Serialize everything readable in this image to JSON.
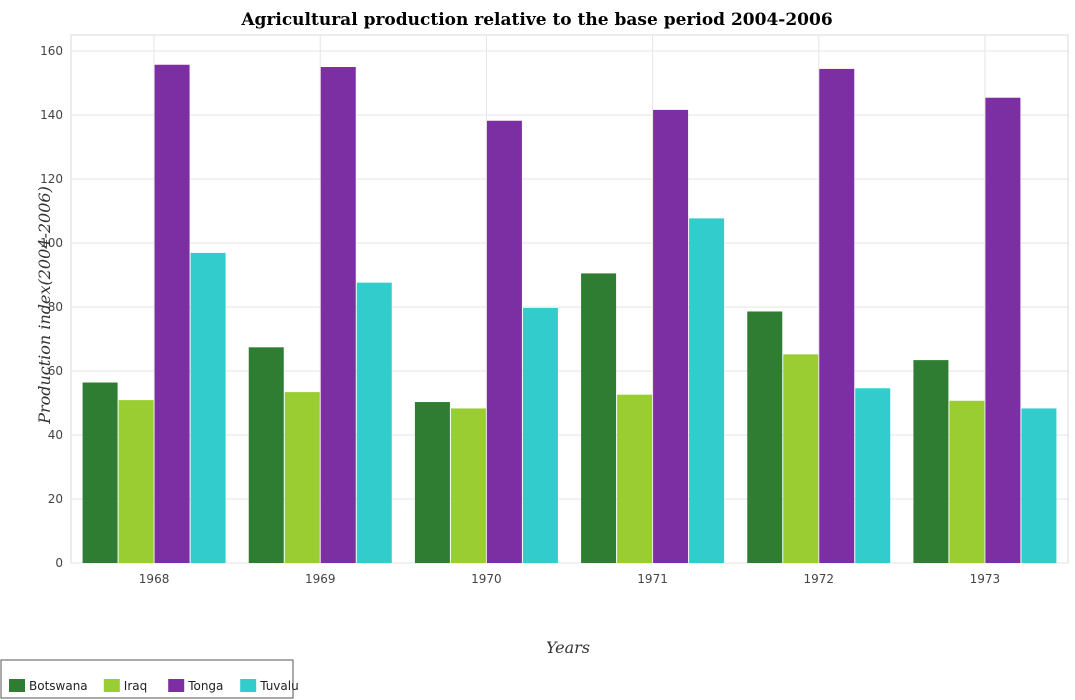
{
  "chart_data": {
    "type": "bar",
    "title": "Agricultural production relative to the base period 2004-2006",
    "xlabel": "Years",
    "ylabel": "Production index(2004-2006)",
    "categories": [
      "1968",
      "1969",
      "1970",
      "1971",
      "1972",
      "1973"
    ],
    "ylim": [
      0,
      165
    ],
    "yticks": [
      0,
      20,
      40,
      60,
      80,
      100,
      120,
      140,
      160
    ],
    "grid": true,
    "legend_position": "bottom-left",
    "series": [
      {
        "name": "Botswana",
        "color": "#2e7d32",
        "values": [
          56.4,
          67.4,
          50.3,
          90.5,
          78.6,
          63.4
        ]
      },
      {
        "name": "Iraq",
        "color": "#9acd32",
        "values": [
          50.9,
          53.4,
          48.3,
          52.6,
          65.2,
          50.7
        ]
      },
      {
        "name": "Tonga",
        "color": "#7b2fa3",
        "values": [
          155.7,
          155.0,
          138.2,
          141.6,
          154.4,
          145.4
        ]
      },
      {
        "name": "Tuvalu",
        "color": "#33cccc",
        "values": [
          96.9,
          87.6,
          79.7,
          107.7,
          54.6,
          48.3
        ]
      }
    ]
  }
}
